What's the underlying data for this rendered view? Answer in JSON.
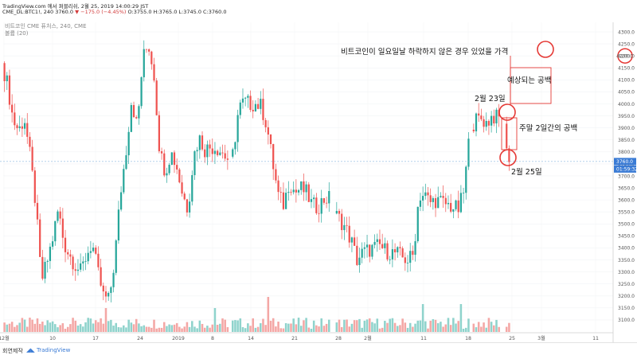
{
  "header": {
    "line1": "TradingView.com 에서 퍼블리쉬, 2월 25, 2019 14:00:29 JST",
    "line2_prefix": "CME_DL:BTC1!, 240 3760.0",
    "line2_change": "▼ −175.0 (−4.45%)",
    "line2_ohlc": "O:3755.0 H:3765.0 L:3745.0 C:3760.0"
  },
  "legend": {
    "series": "비트코인 CME 퓨처스, 240, CME",
    "volume": "볼륨 (20)"
  },
  "footer": {
    "author": "회연제작",
    "brand": "TradingView"
  },
  "colors": {
    "up": "#26a69a",
    "down": "#ef5350",
    "volume_up": "#8fd3cc",
    "volume_down": "#f4a7a5",
    "price_line": "#6ba5d6",
    "annotation": "#e53935"
  },
  "chart_data": {
    "type": "candlestick",
    "interval": "240",
    "ylim": [
      3050,
      4320
    ],
    "y_ticks": [
      "4300.0",
      "4250.0",
      "4200.0",
      "4150.0",
      "4100.0",
      "4050.0",
      "4000.0",
      "3950.0",
      "3900.0",
      "3850.0",
      "3800.0",
      "3750.0",
      "3700.0",
      "3650.0",
      "3600.0",
      "3550.0",
      "3500.0",
      "3450.0",
      "3400.0",
      "3350.0",
      "3300.0",
      "3250.0",
      "3200.0",
      "3150.0",
      "3100.0"
    ],
    "x_ticks": [
      "12월",
      "10",
      "17",
      "24",
      "2019",
      "8",
      "14",
      "21",
      "28",
      "2월",
      "11",
      "18",
      "25",
      "3월",
      "11"
    ],
    "last_price": "3760.0",
    "last_time": "01:59:32",
    "marker_price": "4200.0",
    "price_path": [
      [
        0,
        4170
      ],
      [
        1,
        4080
      ],
      [
        2,
        3930
      ],
      [
        3,
        3890
      ],
      [
        4,
        3940
      ],
      [
        5,
        3780
      ],
      [
        6,
        3580
      ],
      [
        7,
        3260
      ],
      [
        8,
        3340
      ],
      [
        9,
        3440
      ],
      [
        10,
        3560
      ],
      [
        11,
        3420
      ],
      [
        12,
        3370
      ],
      [
        13,
        3330
      ],
      [
        14,
        3300
      ],
      [
        15,
        3370
      ],
      [
        16,
        3420
      ],
      [
        17,
        3300
      ],
      [
        18,
        3200
      ],
      [
        19,
        3180
      ],
      [
        20,
        3350
      ],
      [
        21,
        3620
      ],
      [
        22,
        3800
      ],
      [
        23,
        4020
      ],
      [
        24,
        3900
      ],
      [
        25,
        4190
      ],
      [
        26,
        4250
      ],
      [
        27,
        4120
      ],
      [
        28,
        3800
      ],
      [
        29,
        3720
      ],
      [
        30,
        3800
      ],
      [
        31,
        3740
      ],
      [
        32,
        3630
      ],
      [
        33,
        3560
      ],
      [
        34,
        3780
      ],
      [
        35,
        3860
      ],
      [
        36,
        3810
      ],
      [
        37,
        3820
      ],
      [
        38,
        3820
      ],
      [
        39,
        3800
      ],
      [
        40,
        3770
      ],
      [
        41,
        3790
      ],
      [
        42,
        3980
      ],
      [
        43,
        4010
      ],
      [
        44,
        4000
      ],
      [
        45,
        4000
      ],
      [
        46,
        3990
      ],
      [
        47,
        3910
      ],
      [
        48,
        3760
      ],
      [
        49,
        3620
      ],
      [
        50,
        3580
      ],
      [
        51,
        3680
      ],
      [
        52,
        3630
      ],
      [
        53,
        3650
      ],
      [
        54,
        3630
      ],
      [
        55,
        3580
      ],
      [
        56,
        3570
      ],
      [
        57,
        3600
      ],
      [
        58,
        3610
      ],
      [
        59,
        3540
      ],
      [
        60,
        3520
      ],
      [
        61,
        3480
      ],
      [
        62,
        3430
      ],
      [
        63,
        3350
      ],
      [
        64,
        3380
      ],
      [
        65,
        3390
      ],
      [
        66,
        3400
      ],
      [
        67,
        3410
      ],
      [
        68,
        3390
      ],
      [
        69,
        3380
      ],
      [
        70,
        3380
      ],
      [
        71,
        3360
      ],
      [
        72,
        3350
      ],
      [
        73,
        3370
      ],
      [
        74,
        3620
      ],
      [
        75,
        3620
      ],
      [
        76,
        3590
      ],
      [
        77,
        3600
      ],
      [
        78,
        3590
      ],
      [
        79,
        3580
      ],
      [
        80,
        3570
      ],
      [
        81,
        3560
      ],
      [
        82,
        3640
      ],
      [
        83,
        3880
      ],
      [
        84,
        3930
      ],
      [
        85,
        3940
      ],
      [
        86,
        3920
      ],
      [
        87,
        3950
      ],
      [
        88,
        3940
      ],
      [
        89,
        3935
      ],
      [
        90,
        3760
      ]
    ]
  },
  "annotations": {
    "title": "비트코인이 일요일날 하락하지 않은 경우 있었을 가격",
    "expected_gap": "예상되는 공백",
    "feb23": "2월 23일",
    "weekend_gap": "주말 2일간의 공백",
    "feb25": "2월 25일"
  }
}
